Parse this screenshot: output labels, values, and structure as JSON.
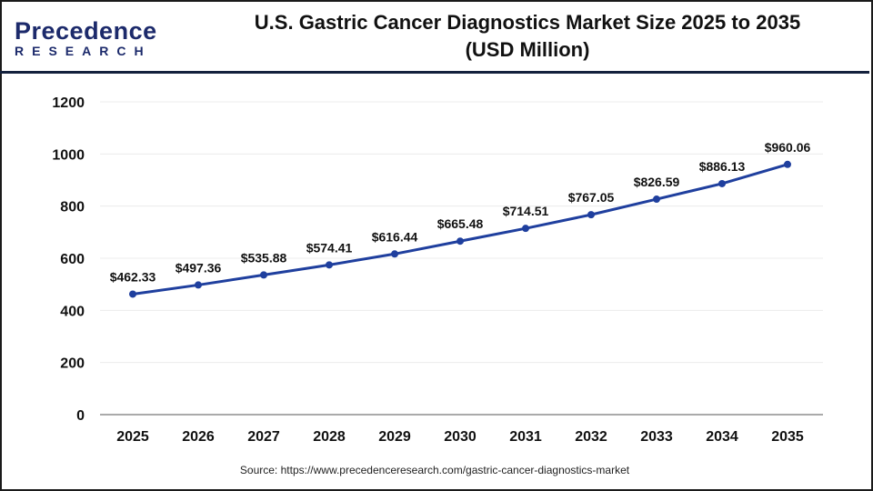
{
  "logo": {
    "text_main": "Precedence",
    "text_sub": "RESEARCH"
  },
  "title_line1": "U.S. Gastric Cancer Diagnostics Market Size 2025 to 2035",
  "title_line2": "(USD Million)",
  "source": "Source: https://www.precedenceresearch.com/gastric-cancer-diagnostics-market",
  "chart_data": {
    "type": "line",
    "title": "U.S. Gastric Cancer Diagnostics Market Size 2025 to 2035 (USD Million)",
    "xlabel": "",
    "ylabel": "",
    "categories": [
      "2025",
      "2026",
      "2027",
      "2028",
      "2029",
      "2030",
      "2031",
      "2032",
      "2033",
      "2034",
      "2035"
    ],
    "values": [
      462.33,
      497.36,
      535.88,
      574.41,
      616.44,
      665.48,
      714.51,
      767.05,
      826.59,
      886.13,
      960.06
    ],
    "data_labels": [
      "$462.33",
      "$497.36",
      "$535.88",
      "$574.41",
      "$616.44",
      "$665.48",
      "$714.51",
      "$767.05",
      "$826.59",
      "$886.13",
      "$960.06"
    ],
    "ylim": [
      0,
      1200
    ],
    "yticks": [
      0,
      200,
      400,
      600,
      800,
      1000,
      1200
    ],
    "grid": true,
    "line_color": "#1f3f9e"
  }
}
